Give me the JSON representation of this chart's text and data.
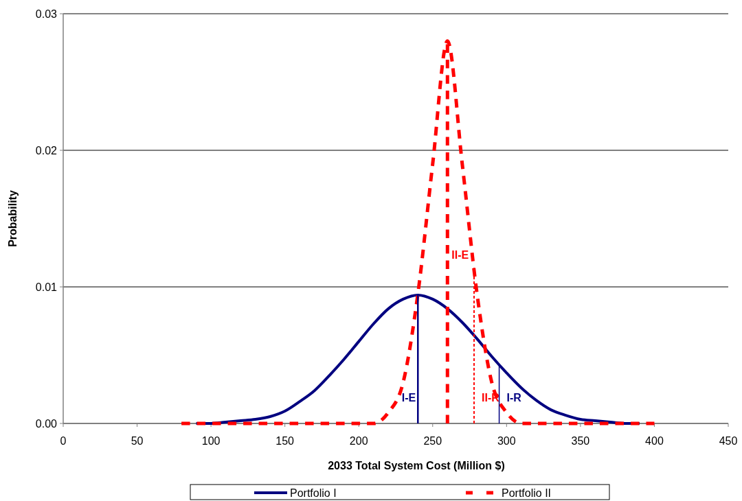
{
  "chart_data": {
    "type": "line",
    "xlabel": "2033 Total System Cost (Million $)",
    "ylabel": "Probability",
    "xlim": [
      0,
      450
    ],
    "xticks": [
      0,
      50,
      100,
      150,
      200,
      250,
      300,
      350,
      400,
      450
    ],
    "ylim": [
      0,
      0.03
    ],
    "yticks": [
      {
        "value": 0,
        "label": "0.00"
      },
      {
        "value": 0.01,
        "label": "0.01"
      },
      {
        "value": 0.02,
        "label": "0.02"
      },
      {
        "value": 0.03,
        "label": "0.03"
      }
    ],
    "grid": "y",
    "legend": "bottom",
    "series": [
      {
        "name": "Portfolio I",
        "color": "#000080",
        "line_style": "solid",
        "x": [
          90,
          100,
          110,
          120,
          130,
          140,
          150,
          160,
          170,
          180,
          190,
          200,
          210,
          220,
          230,
          240,
          250,
          260,
          270,
          280,
          290,
          300,
          310,
          320,
          330,
          340,
          350,
          360,
          370,
          380,
          390
        ],
        "values": [
          0,
          0,
          0.0001,
          0.0002,
          0.0003,
          0.0005,
          0.0009,
          0.0016,
          0.0024,
          0.0035,
          0.0047,
          0.006,
          0.0073,
          0.0084,
          0.0091,
          0.0094,
          0.0091,
          0.0084,
          0.0074,
          0.0062,
          0.0049,
          0.0037,
          0.0026,
          0.0017,
          0.001,
          0.0006,
          0.0003,
          0.0002,
          0.0001,
          0,
          0
        ]
      },
      {
        "name": "Portfolio II",
        "color": "#ff0000",
        "line_style": "dashed",
        "x": [
          80,
          100,
          120,
          140,
          160,
          180,
          200,
          210,
          220,
          230,
          240,
          250,
          260,
          270,
          280,
          290,
          300,
          310,
          320,
          340,
          360,
          380,
          400
        ],
        "values": [
          0,
          0,
          0,
          0,
          0,
          0,
          0,
          0,
          0.0008,
          0.003,
          0.0095,
          0.019,
          0.028,
          0.019,
          0.0095,
          0.003,
          0.0008,
          0,
          0,
          0,
          0,
          0,
          0
        ]
      }
    ],
    "ref_lines": [
      {
        "axis": "x",
        "value": 240,
        "label": "I-E",
        "color": "#000080",
        "line_style": "solid"
      },
      {
        "axis": "x",
        "value": 260,
        "label": "II-E",
        "color": "#ff0000",
        "line_style": "dashed"
      },
      {
        "axis": "x",
        "value": 278,
        "label": "II-R",
        "color": "#ff0000",
        "line_style": "dotted"
      },
      {
        "axis": "x",
        "value": 295,
        "label": "I-R",
        "color": "#000080",
        "line_style": "solid"
      }
    ]
  }
}
